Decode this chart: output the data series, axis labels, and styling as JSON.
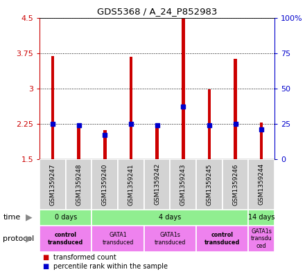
{
  "title": "GDS5368 / A_24_P852983",
  "samples": [
    "GSM1359247",
    "GSM1359248",
    "GSM1359240",
    "GSM1359241",
    "GSM1359242",
    "GSM1359243",
    "GSM1359245",
    "GSM1359246",
    "GSM1359244"
  ],
  "transformed_counts": [
    3.68,
    2.22,
    2.12,
    3.67,
    2.22,
    4.48,
    2.98,
    3.62,
    2.28
  ],
  "percentile_ranks": [
    25,
    24,
    17,
    25,
    24,
    37,
    24,
    25,
    21
  ],
  "ymin": 1.5,
  "ymax": 4.5,
  "yticks": [
    1.5,
    2.25,
    3.0,
    3.75,
    4.5
  ],
  "ytick_labels": [
    "1.5",
    "2.25",
    "3",
    "3.75",
    "4.5"
  ],
  "right_yticks": [
    0,
    25,
    50,
    75,
    100
  ],
  "right_ytick_labels": [
    "0",
    "25",
    "50",
    "75",
    "100%"
  ],
  "bar_color": "#cc0000",
  "dot_color": "#0000cc",
  "time_groups": [
    {
      "label": "0 days",
      "start": 0,
      "end": 2,
      "color": "#90ee90"
    },
    {
      "label": "4 days",
      "start": 2,
      "end": 8,
      "color": "#90ee90"
    },
    {
      "label": "14 days",
      "start": 8,
      "end": 9,
      "color": "#90ee90"
    }
  ],
  "protocol_groups": [
    {
      "label": "control\ntransduced",
      "start": 0,
      "end": 2,
      "color": "#ee82ee",
      "bold": true
    },
    {
      "label": "GATA1\ntransduced",
      "start": 2,
      "end": 4,
      "color": "#ee82ee",
      "bold": false
    },
    {
      "label": "GATA1s\ntransduced",
      "start": 4,
      "end": 6,
      "color": "#ee82ee",
      "bold": false
    },
    {
      "label": "control\ntransduced",
      "start": 6,
      "end": 8,
      "color": "#ee82ee",
      "bold": true
    },
    {
      "label": "GATA1s\ntransdu\nced",
      "start": 8,
      "end": 9,
      "color": "#ee82ee",
      "bold": false
    }
  ],
  "sample_bg_color": "#d3d3d3",
  "left_axis_color": "#cc0000",
  "right_axis_color": "#0000cc",
  "bar_width": 0.12,
  "dot_size": 4
}
